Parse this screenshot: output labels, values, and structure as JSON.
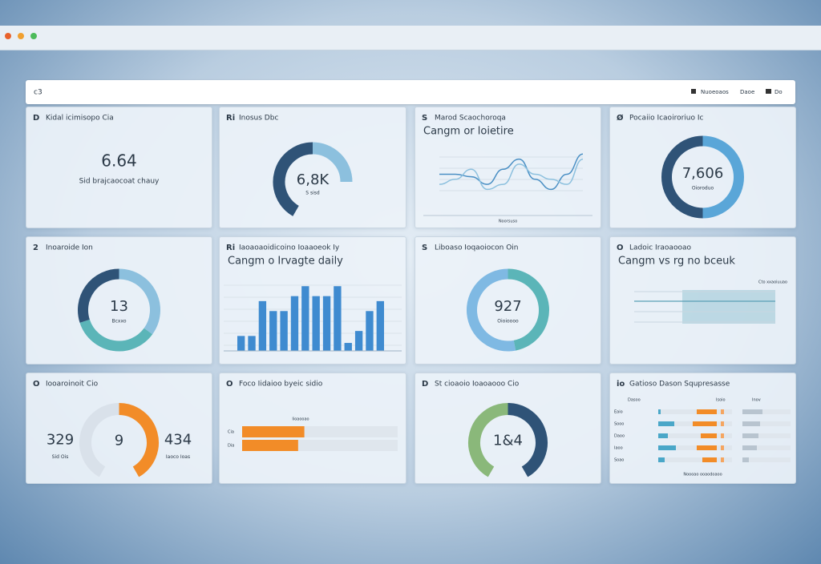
{
  "topbar": {
    "logo": "c3",
    "links": [
      "Nuoeoaos",
      "Daoe",
      "Do"
    ]
  },
  "cards": [
    {
      "type": "stat",
      "icon": "D",
      "title": "Kidal icimisopo Cia",
      "value": "6.64",
      "subtitle": "Sid brajcaocoat chauy"
    },
    {
      "type": "gauge",
      "icon": "Ri",
      "title": "Inosus Dbc",
      "value": "6,8K",
      "subtitle": "S sisd",
      "segments": [
        {
          "value": 50,
          "color": "#2f5377"
        },
        {
          "value": 30,
          "color": "#8cc0de"
        }
      ]
    },
    {
      "type": "line",
      "icon": "S",
      "title": "Marod Scaochoroqa",
      "heading": "Cangm or loietire",
      "footnote": "Noorsuso",
      "ylim": [
        0,
        10
      ],
      "series": [
        {
          "color": "#4a8fc4",
          "values": [
            5,
            5,
            4.5,
            3,
            6,
            8,
            4,
            2,
            5,
            9
          ]
        },
        {
          "color": "#8cc0de",
          "values": [
            3,
            4,
            6,
            2,
            3,
            7,
            5,
            4,
            3,
            8
          ]
        }
      ]
    },
    {
      "type": "donut",
      "icon": "Ø",
      "title": "Pocaiio Icaoiroriuo Ic",
      "value": "7,606",
      "subtitle": "Oioroduo",
      "segments": [
        {
          "value": 50,
          "color": "#5aa6d8"
        },
        {
          "value": 50,
          "color": "#2f5377"
        }
      ]
    },
    {
      "type": "donut",
      "icon": "2",
      "title": "Inoaroide Ion",
      "value": "13",
      "subtitle": "Bcxxo",
      "segments": [
        {
          "value": 35,
          "color": "#8cc0de"
        },
        {
          "value": 35,
          "color": "#5bb5b8"
        },
        {
          "value": 30,
          "color": "#2f5377"
        }
      ]
    },
    {
      "type": "bars",
      "icon": "Ri",
      "title": "Iaoaoaoidicoino Ioaaoeok Iy",
      "heading": "Cangm o Irvagte daily",
      "color": "#3f8bd0",
      "ylim": [
        0,
        70
      ],
      "values": [
        15,
        15,
        50,
        40,
        40,
        55,
        65,
        55,
        55,
        65,
        8,
        20,
        40,
        50
      ]
    },
    {
      "type": "donut",
      "icon": "S",
      "title": "Liboaso Ioqaoiocon Oin",
      "value": "927",
      "subtitle": "Oioioooo",
      "segments": [
        {
          "value": 47,
          "color": "#5bb5b8"
        },
        {
          "value": 53,
          "color": "#7fb9e3"
        }
      ]
    },
    {
      "type": "band",
      "icon": "O",
      "title": "Ladoic Iraoaooao",
      "heading": "Cangm vs rg no bceuk",
      "legend": "Cto xxaoiuuao"
    },
    {
      "type": "gauge",
      "icon": "O",
      "title": "Iooaroinoit Cio",
      "value": "9",
      "left": "329",
      "left_sub": "Sid Ois",
      "right": "434",
      "right_sub": "Iaoco Ioas",
      "segments": [
        {
          "value": 50,
          "color": "#d9e1ea"
        },
        {
          "value": 50,
          "color": "#f28c28"
        }
      ]
    },
    {
      "type": "hbars",
      "icon": "O",
      "title": "Foco Iidaioo byeic sidio",
      "label": "Iioaooao",
      "color": "#f28c28",
      "rows": [
        {
          "name": "Cia",
          "value": 40
        },
        {
          "name": "Dia",
          "value": 36
        }
      ]
    },
    {
      "type": "gauge",
      "icon": "D",
      "title": "St cioaoio Ioaoaooo Cio",
      "value": "1&4",
      "segments": [
        {
          "value": 50,
          "color": "#8ab87a"
        },
        {
          "value": 50,
          "color": "#2f5377"
        }
      ]
    },
    {
      "type": "table",
      "icon": "io",
      "title": "Gatioso Dason Squpresasse",
      "columns": [
        "Dasoo",
        "Isoio",
        "Inov"
      ],
      "footnote": "Noooao ooaodoaoo",
      "rows": [
        {
          "name": "Eaio",
          "values": [
            3,
            25,
            25
          ]
        },
        {
          "name": "Sooo",
          "values": [
            20,
            30,
            22
          ]
        },
        {
          "name": "Daoo",
          "values": [
            12,
            20,
            20
          ]
        },
        {
          "name": "Iaoo",
          "values": [
            22,
            25,
            18
          ]
        },
        {
          "name": "Soao",
          "values": [
            8,
            18,
            8
          ]
        }
      ]
    }
  ]
}
